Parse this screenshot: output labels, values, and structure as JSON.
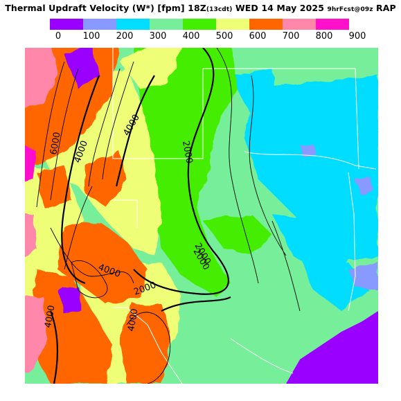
{
  "header": {
    "title_main": "Thermal Updraft Velocity (W*) [fpm] 18Z",
    "title_local": "(13cdt)",
    "title_date": "WED 14 May 2025",
    "title_fcst": "9hrFcst@09z",
    "title_model": "RAP"
  },
  "legend": {
    "ticks": [
      "0",
      "100",
      "200",
      "300",
      "400",
      "500",
      "600",
      "700",
      "800",
      "900"
    ],
    "colors": [
      "#9900ff",
      "#8899ff",
      "#00ddff",
      "#77ee99",
      "#44ee00",
      "#eeff77",
      "#ff6600",
      "#ff88aa",
      "#ff11cc"
    ]
  },
  "contour_labels": [
    "6000",
    "4000",
    "4000",
    "2000",
    "2000",
    "4000",
    "2000",
    "2000",
    "4000",
    "4000"
  ]
}
